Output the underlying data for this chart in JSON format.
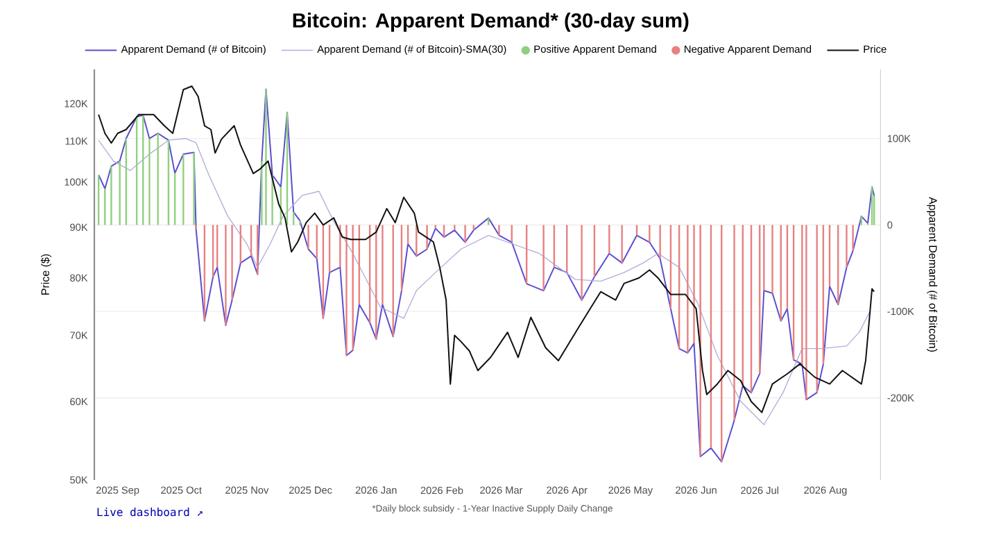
{
  "chart_data": {
    "type": "line",
    "title": "Bitcoin: Apparent Demand* (30-day sum)",
    "ylabel": "Price ($)",
    "y2label": "Apparent Demand (# of Bitcoin)",
    "log": "y",
    "grid": "y",
    "legend": "top",
    "xlim": [
      "2025-08-21",
      "2026-08-27"
    ],
    "xticks": [
      {
        "value": "2025-09-01",
        "label": "2025 Sep"
      },
      {
        "value": "2025-10-01",
        "label": "2025 Oct"
      },
      {
        "value": "2025-11-01",
        "label": "2025 Nov"
      },
      {
        "value": "2025-12-01",
        "label": "2025 Dec"
      },
      {
        "value": "2026-01-01",
        "label": "2026 Jan"
      },
      {
        "value": "2026-02-01",
        "label": "2026 Feb"
      },
      {
        "value": "2026-03-01",
        "label": "2026 Mar"
      },
      {
        "value": "2026-04-01",
        "label": "2026 Apr"
      },
      {
        "value": "2026-05-01",
        "label": "2026 May"
      },
      {
        "value": "2026-06-01",
        "label": "2026 Jun"
      },
      {
        "value": "2026-07-01",
        "label": "2026 Jul"
      },
      {
        "value": "2026-08-01",
        "label": "2026 Aug"
      }
    ],
    "ylim": [
      50000,
      130000
    ],
    "yticks": [
      {
        "value": 50000,
        "label": "50K"
      },
      {
        "value": 60000,
        "label": "60K"
      },
      {
        "value": 70000,
        "label": "70K"
      },
      {
        "value": 80000,
        "label": "80K"
      },
      {
        "value": 90000,
        "label": "90K"
      },
      {
        "value": 100000,
        "label": "100K"
      },
      {
        "value": 110000,
        "label": "110K"
      },
      {
        "value": 120000,
        "label": "120K"
      }
    ],
    "y2lim": [
      -295000,
      180000
    ],
    "y2ticks": [
      {
        "value": -200000,
        "label": "-200K"
      },
      {
        "value": -100000,
        "label": "-100K"
      },
      0,
      {
        "value": 100000,
        "label": "100K"
      }
    ],
    "annotations": [
      "Live dashboard ↗",
      "*Daily block subsidy - 1-Year Inactive Supply Daily Change"
    ],
    "series": [
      {
        "name": "Apparent Demand (# of Bitcoin)",
        "axis": "y2",
        "color": "#5b4fd0",
        "x": [
          "2025-08-23",
          "2025-08-26",
          "2025-08-29",
          "2025-09-02",
          "2025-09-05",
          "2025-09-10",
          "2025-09-13",
          "2025-09-16",
          "2025-09-20",
          "2025-09-25",
          "2025-09-28",
          "2025-10-02",
          "2025-10-07",
          "2025-10-08",
          "2025-10-12",
          "2025-10-16",
          "2025-10-18",
          "2025-10-22",
          "2025-10-25",
          "2025-10-29",
          "2025-11-03",
          "2025-11-06",
          "2025-11-08",
          "2025-11-10",
          "2025-11-13",
          "2025-11-17",
          "2025-11-20",
          "2025-11-23",
          "2025-11-26",
          "2025-11-30",
          "2025-12-04",
          "2025-12-07",
          "2025-12-10",
          "2025-12-15",
          "2025-12-18",
          "2025-12-21",
          "2025-12-24",
          "2025-12-29",
          "2026-01-01",
          "2026-01-04",
          "2026-01-09",
          "2026-01-13",
          "2026-01-16",
          "2026-01-20",
          "2026-01-25",
          "2026-01-29",
          "2026-02-02",
          "2026-02-07",
          "2026-02-12",
          "2026-02-16",
          "2026-02-23",
          "2026-02-28",
          "2026-03-06",
          "2026-03-13",
          "2026-03-21",
          "2026-03-26",
          "2026-04-01",
          "2026-04-08",
          "2026-04-14",
          "2026-04-21",
          "2026-04-27",
          "2026-05-04",
          "2026-05-10",
          "2026-05-15",
          "2026-05-20",
          "2026-05-24",
          "2026-05-28",
          "2026-05-31",
          "2026-06-03",
          "2026-06-08",
          "2026-06-13",
          "2026-06-19",
          "2026-06-23",
          "2026-06-27",
          "2026-07-01",
          "2026-07-03",
          "2026-07-07",
          "2026-07-11",
          "2026-07-14",
          "2026-07-17",
          "2026-07-21",
          "2026-07-23",
          "2026-07-28",
          "2026-07-31",
          "2026-08-03",
          "2026-08-07",
          "2026-08-11",
          "2026-08-14",
          "2026-08-18",
          "2026-08-21",
          "2026-08-23",
          "2026-08-24"
        ],
        "values": [
          58000,
          42000,
          68000,
          74000,
          100000,
          125000,
          127000,
          100000,
          106000,
          98000,
          60000,
          82000,
          84000,
          -5000,
          -111000,
          -60000,
          -49000,
          -116000,
          -87000,
          -44000,
          -36000,
          -57000,
          74000,
          157000,
          58000,
          44000,
          130000,
          15000,
          5000,
          -28000,
          -39000,
          -108000,
          -55000,
          -49000,
          -151000,
          -145000,
          -92000,
          -113000,
          -132000,
          -92000,
          -129000,
          -76000,
          -22000,
          -36000,
          -28000,
          -4000,
          -14000,
          -6000,
          -20000,
          -6000,
          8000,
          -12000,
          -20000,
          -68000,
          -76000,
          -49000,
          -55000,
          -87000,
          -60000,
          -33000,
          -44000,
          -12000,
          -20000,
          -39000,
          -97000,
          -143000,
          -148000,
          -137000,
          -268000,
          -258000,
          -274000,
          -226000,
          -186000,
          -194000,
          -172000,
          -76000,
          -79000,
          -111000,
          -97000,
          -156000,
          -161000,
          -202000,
          -194000,
          -161000,
          -71000,
          -92000,
          -49000,
          -30000,
          10000,
          2000,
          44000,
          34000
        ]
      },
      {
        "name": "Apparent Demand (# of Bitcoin)-SMA(30)",
        "axis": "y2",
        "color": "#b3acd9",
        "x": [
          "2025-08-23",
          "2025-08-30",
          "2025-09-07",
          "2025-09-16",
          "2025-09-25",
          "2025-10-03",
          "2025-10-08",
          "2025-10-14",
          "2025-10-23",
          "2025-11-01",
          "2025-11-06",
          "2025-11-12",
          "2025-11-18",
          "2025-11-27",
          "2025-12-05",
          "2025-12-12",
          "2025-12-21",
          "2026-01-03",
          "2026-01-14",
          "2026-01-20",
          "2026-01-29",
          "2026-02-10",
          "2026-02-23",
          "2026-03-19",
          "2026-04-05",
          "2026-04-17",
          "2026-04-28",
          "2026-05-07",
          "2026-05-14",
          "2026-05-24",
          "2026-06-02",
          "2026-06-11",
          "2026-06-22",
          "2026-07-03",
          "2026-07-12",
          "2026-07-21",
          "2026-07-30",
          "2026-08-11",
          "2026-08-17",
          "2026-08-22"
        ],
        "values": [
          98000,
          74000,
          63000,
          82000,
          98000,
          100000,
          95000,
          58000,
          10000,
          -22000,
          -49000,
          -22000,
          10000,
          34000,
          39000,
          4000,
          -33000,
          -95000,
          -108000,
          -76000,
          -55000,
          -28000,
          -12000,
          -33000,
          -63000,
          -65000,
          -55000,
          -44000,
          -33000,
          -49000,
          -92000,
          -151000,
          -204000,
          -231000,
          -194000,
          -143000,
          -143000,
          -140000,
          -124000,
          -100000
        ]
      },
      {
        "name": "Positive Apparent Demand",
        "type": "bar",
        "axis": "y2",
        "color": "#8fd07f",
        "x": [
          "2025-08-23",
          "2025-08-26",
          "2025-08-29",
          "2025-09-02",
          "2025-09-05",
          "2025-09-10",
          "2025-09-13",
          "2025-09-16",
          "2025-09-20",
          "2025-09-25",
          "2025-09-28",
          "2025-10-02",
          "2025-10-07",
          "2025-11-08",
          "2025-11-10",
          "2025-11-13",
          "2025-11-17",
          "2025-11-20",
          "2025-11-23",
          "2025-11-26",
          "2026-02-23",
          "2026-08-18",
          "2026-08-21",
          "2026-08-23",
          "2026-08-24"
        ],
        "values": [
          58000,
          42000,
          68000,
          74000,
          100000,
          125000,
          127000,
          100000,
          106000,
          98000,
          60000,
          82000,
          84000,
          74000,
          157000,
          58000,
          44000,
          130000,
          15000,
          5000,
          8000,
          10000,
          2000,
          44000,
          34000
        ]
      },
      {
        "name": "Negative Apparent Demand",
        "type": "bar",
        "axis": "y2",
        "color": "#e88080",
        "x": [
          "2025-10-08",
          "2025-10-12",
          "2025-10-16",
          "2025-10-18",
          "2025-10-22",
          "2025-10-25",
          "2025-10-29",
          "2025-11-03",
          "2025-11-06",
          "2025-11-30",
          "2025-12-04",
          "2025-12-07",
          "2025-12-10",
          "2025-12-15",
          "2025-12-18",
          "2025-12-21",
          "2025-12-24",
          "2025-12-29",
          "2026-01-01",
          "2026-01-04",
          "2026-01-09",
          "2026-01-13",
          "2026-01-16",
          "2026-01-20",
          "2026-01-25",
          "2026-01-29",
          "2026-02-02",
          "2026-02-07",
          "2026-02-12",
          "2026-02-16",
          "2026-02-28",
          "2026-03-06",
          "2026-03-13",
          "2026-03-21",
          "2026-03-26",
          "2026-04-01",
          "2026-04-08",
          "2026-04-14",
          "2026-04-21",
          "2026-04-27",
          "2026-05-04",
          "2026-05-10",
          "2026-05-15",
          "2026-05-20",
          "2026-05-24",
          "2026-05-28",
          "2026-05-31",
          "2026-06-03",
          "2026-06-08",
          "2026-06-13",
          "2026-06-19",
          "2026-06-23",
          "2026-06-27",
          "2026-07-01",
          "2026-07-03",
          "2026-07-07",
          "2026-07-11",
          "2026-07-14",
          "2026-07-17",
          "2026-07-21",
          "2026-07-23",
          "2026-07-28",
          "2026-07-31",
          "2026-08-03",
          "2026-08-07",
          "2026-08-11",
          "2026-08-14"
        ],
        "values": [
          -5000,
          -111000,
          -60000,
          -49000,
          -116000,
          -87000,
          -44000,
          -36000,
          -57000,
          -28000,
          -39000,
          -108000,
          -55000,
          -49000,
          -151000,
          -145000,
          -92000,
          -113000,
          -132000,
          -92000,
          -129000,
          -76000,
          -22000,
          -36000,
          -28000,
          -4000,
          -14000,
          -6000,
          -20000,
          -6000,
          -12000,
          -20000,
          -68000,
          -76000,
          -49000,
          -55000,
          -87000,
          -60000,
          -33000,
          -44000,
          -12000,
          -20000,
          -39000,
          -97000,
          -143000,
          -148000,
          -137000,
          -268000,
          -258000,
          -274000,
          -226000,
          -186000,
          -194000,
          -172000,
          -76000,
          -79000,
          -111000,
          -97000,
          -156000,
          -161000,
          -202000,
          -194000,
          -161000,
          -71000,
          -92000,
          -49000,
          -30000
        ]
      },
      {
        "name": "Price",
        "color": "#111111",
        "x": [
          "2025-08-23",
          "2025-08-26",
          "2025-08-29",
          "2025-09-01",
          "2025-09-05",
          "2025-09-11",
          "2025-09-18",
          "2025-09-23",
          "2025-09-27",
          "2025-10-02",
          "2025-10-06",
          "2025-10-09",
          "2025-10-12",
          "2025-10-15",
          "2025-10-17",
          "2025-10-20",
          "2025-10-26",
          "2025-10-29",
          "2025-11-04",
          "2025-11-07",
          "2025-11-11",
          "2025-11-16",
          "2025-11-19",
          "2025-11-22",
          "2025-11-25",
          "2025-11-29",
          "2025-12-03",
          "2025-12-07",
          "2025-12-12",
          "2025-12-16",
          "2025-12-20",
          "2025-12-27",
          "2026-01-01",
          "2026-01-06",
          "2026-01-10",
          "2026-01-14",
          "2026-01-19",
          "2026-01-21",
          "2026-01-28",
          "2026-01-31",
          "2026-02-03",
          "2026-02-05",
          "2026-02-07",
          "2026-02-10",
          "2026-02-14",
          "2026-02-18",
          "2026-02-24",
          "2026-03-04",
          "2026-03-09",
          "2026-03-15",
          "2026-03-22",
          "2026-03-28",
          "2026-04-06",
          "2026-04-12",
          "2026-04-17",
          "2026-04-24",
          "2026-04-28",
          "2026-05-05",
          "2026-05-10",
          "2026-05-14",
          "2026-05-20",
          "2026-05-27",
          "2026-06-01",
          "2026-06-04",
          "2026-06-06",
          "2026-06-11",
          "2026-06-16",
          "2026-06-22",
          "2026-06-27",
          "2026-07-02",
          "2026-07-07",
          "2026-07-14",
          "2026-07-20",
          "2026-07-27",
          "2026-08-03",
          "2026-08-09",
          "2026-08-18",
          "2026-08-20",
          "2026-08-23",
          "2026-08-24"
        ],
        "values": [
          117000,
          112000,
          109500,
          112000,
          113000,
          117000,
          117000,
          114000,
          112000,
          124000,
          125000,
          122000,
          114000,
          113000,
          107000,
          110500,
          114000,
          109000,
          102000,
          103000,
          105000,
          95000,
          92000,
          85000,
          87000,
          91000,
          93000,
          90500,
          92000,
          88000,
          87500,
          87500,
          89000,
          94000,
          91000,
          96500,
          93000,
          89000,
          87000,
          82000,
          76000,
          62500,
          70000,
          69000,
          67500,
          64500,
          66500,
          70500,
          66500,
          73000,
          68000,
          66000,
          71000,
          74500,
          77500,
          76000,
          79000,
          80000,
          81500,
          80000,
          77000,
          77000,
          74500,
          64500,
          61000,
          62500,
          64500,
          63000,
          60000,
          58500,
          62500,
          64000,
          65500,
          63500,
          62500,
          64500,
          62500,
          66000,
          78000,
          77500
        ]
      }
    ]
  }
}
